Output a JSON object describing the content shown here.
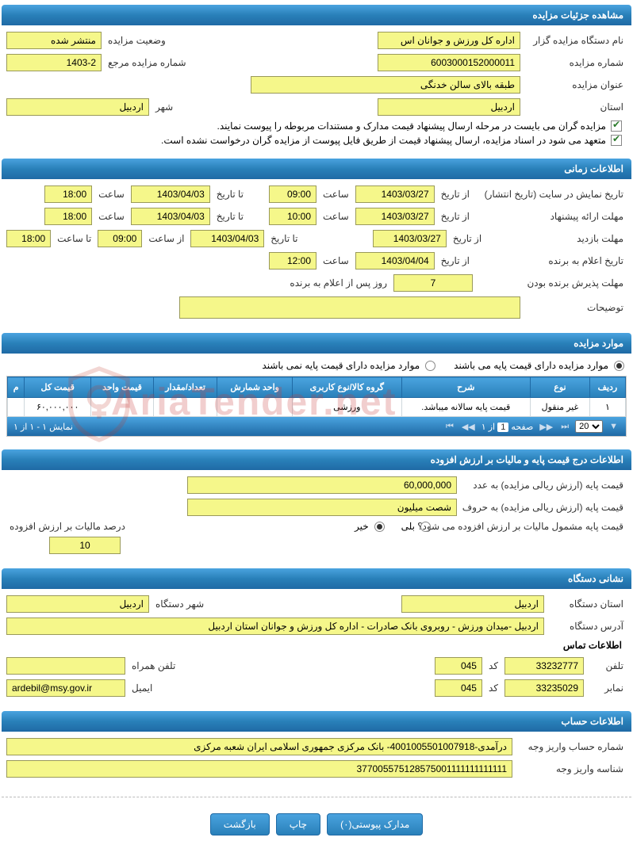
{
  "watermark": "AriaTender.net",
  "sections": {
    "details": {
      "title": "مشاهده جزئیات مزایده",
      "org_label": "نام دستگاه مزایده گزار",
      "org_value": "اداره کل ورزش و جوانان اس",
      "status_label": "وضعیت مزایده",
      "status_value": "منتشر شده",
      "number_label": "شماره مزایده",
      "number_value": "6003000152000011",
      "ref_label": "شماره مزایده مرجع",
      "ref_value": "1403-2",
      "subject_label": "عنوان مزایده",
      "subject_value": "طبقه بالای سالن خدنگی",
      "province_label": "استان",
      "province_value": "اردبیل",
      "city_label": "شهر",
      "city_value": "اردبیل",
      "check1": "مزایده گران می بایست در مرحله ارسال پیشنهاد قیمت مدارک و مستندات مربوطه را پیوست نمایند.",
      "check2": "متعهد می شود در اسناد مزایده، ارسال پیشنهاد قیمت از طریق فایل پیوست از مزایده گران درخواست نشده است."
    },
    "time": {
      "title": "اطلاعات زمانی",
      "publish_label": "تاریخ نمایش در سایت (تاریخ انتشار)",
      "from_date_label": "از تاریخ",
      "to_date_label": "تا تاریخ",
      "time_label": "ساعت",
      "from_time_label": "از ساعت",
      "to_time_label": "تا ساعت",
      "publish_from_date": "1403/03/27",
      "publish_from_time": "09:00",
      "publish_to_date": "1403/04/03",
      "publish_to_time": "18:00",
      "offer_label": "مهلت ارائه پیشنهاد",
      "offer_from_date": "1403/03/27",
      "offer_from_time": "10:00",
      "offer_to_date": "1403/04/03",
      "offer_to_time": "18:00",
      "visit_label": "مهلت بازدید",
      "visit_from_date": "1403/03/27",
      "visit_to_date": "1403/04/03",
      "visit_from_time": "09:00",
      "visit_to_time": "18:00",
      "announce_label": "تاریخ اعلام به برنده",
      "announce_date": "1403/04/04",
      "announce_time": "12:00",
      "accept_label": "مهلت پذیرش برنده بودن",
      "accept_days": "7",
      "accept_suffix": "روز پس از اعلام به برنده",
      "notes_label": "توضیحات",
      "notes_value": ""
    },
    "items": {
      "title": "موارد مزایده",
      "radio_has_base": "موارد مزایده دارای قیمت پایه می باشند",
      "radio_no_base": "موارد مزایده دارای قیمت پایه نمی باشند",
      "columns": [
        "ردیف",
        "نوع",
        "شرح",
        "گروه کالا/نوع کاربری",
        "واحد شمارش",
        "تعداد/مقدار",
        "قیمت واحد",
        "قیمت کل",
        "م"
      ],
      "rows": [
        {
          "n": "۱",
          "type": "غیر منقول",
          "desc": "قیمت پایه سالانه میباشد.",
          "group": "ورزشی",
          "unit": "",
          "qty": "",
          "unitprice": "",
          "total": "۶۰,۰۰۰,۰۰۰",
          "m": ""
        }
      ],
      "pager": {
        "display": "نمایش ۱ - ۱ از ۱",
        "page_label": "صفحه",
        "page": "1",
        "of": "از ۱",
        "pagesize": "20"
      }
    },
    "price": {
      "title": "اطلاعات درج قیمت پایه و مالیات بر ارزش افزوده",
      "base_num_label": "قیمت پایه (ارزش ریالی مزایده) به عدد",
      "base_num_value": "60,000,000",
      "base_word_label": "قیمت پایه (ارزش ریالی مزایده) به حروف",
      "base_word_value": "شصت میلیون",
      "vat_q": "قیمت پایه مشمول مالیات بر ارزش افزوده می شود؟",
      "yes": "بلی",
      "no": "خیر",
      "vat_pct_label": "درصد مالیات بر ارزش افزوده",
      "vat_pct_value": "10"
    },
    "org_addr": {
      "title": "نشانی دستگاه",
      "province_label": "استان دستگاه",
      "province_value": "اردبیل",
      "city_label": "شهر دستگاه",
      "city_value": "اردبیل",
      "address_label": "آدرس دستگاه",
      "address_value": "اردبیل -میدان ورزش - روبروی بانک صادرات - اداره کل ورزش و جوانان استان اردبیل",
      "contact_title": "اطلاعات تماس",
      "phone_label": "تلفن",
      "phone_value": "33232777",
      "code_label": "کد",
      "phone_code": "045",
      "mobile_label": "تلفن همراه",
      "mobile_value": "",
      "fax_label": "نمابر",
      "fax_value": "33235029",
      "fax_code": "045",
      "email_label": "ایمیل",
      "email_value": "ardebil@msy.gov.ir"
    },
    "account": {
      "title": "اطلاعات حساب",
      "acc_label": "شماره حساب واریز وجه",
      "acc_value": "درآمدی-4001005501007918- بانک مرکزی جمهوری اسلامی ایران شعبه مرکزی",
      "id_label": "شناسه واریز وجه",
      "id_value": "377005575128575001111111111111"
    }
  },
  "buttons": {
    "attach": "مدارک پیوستی(۰)",
    "print": "چاپ",
    "back": "بازگشت"
  }
}
